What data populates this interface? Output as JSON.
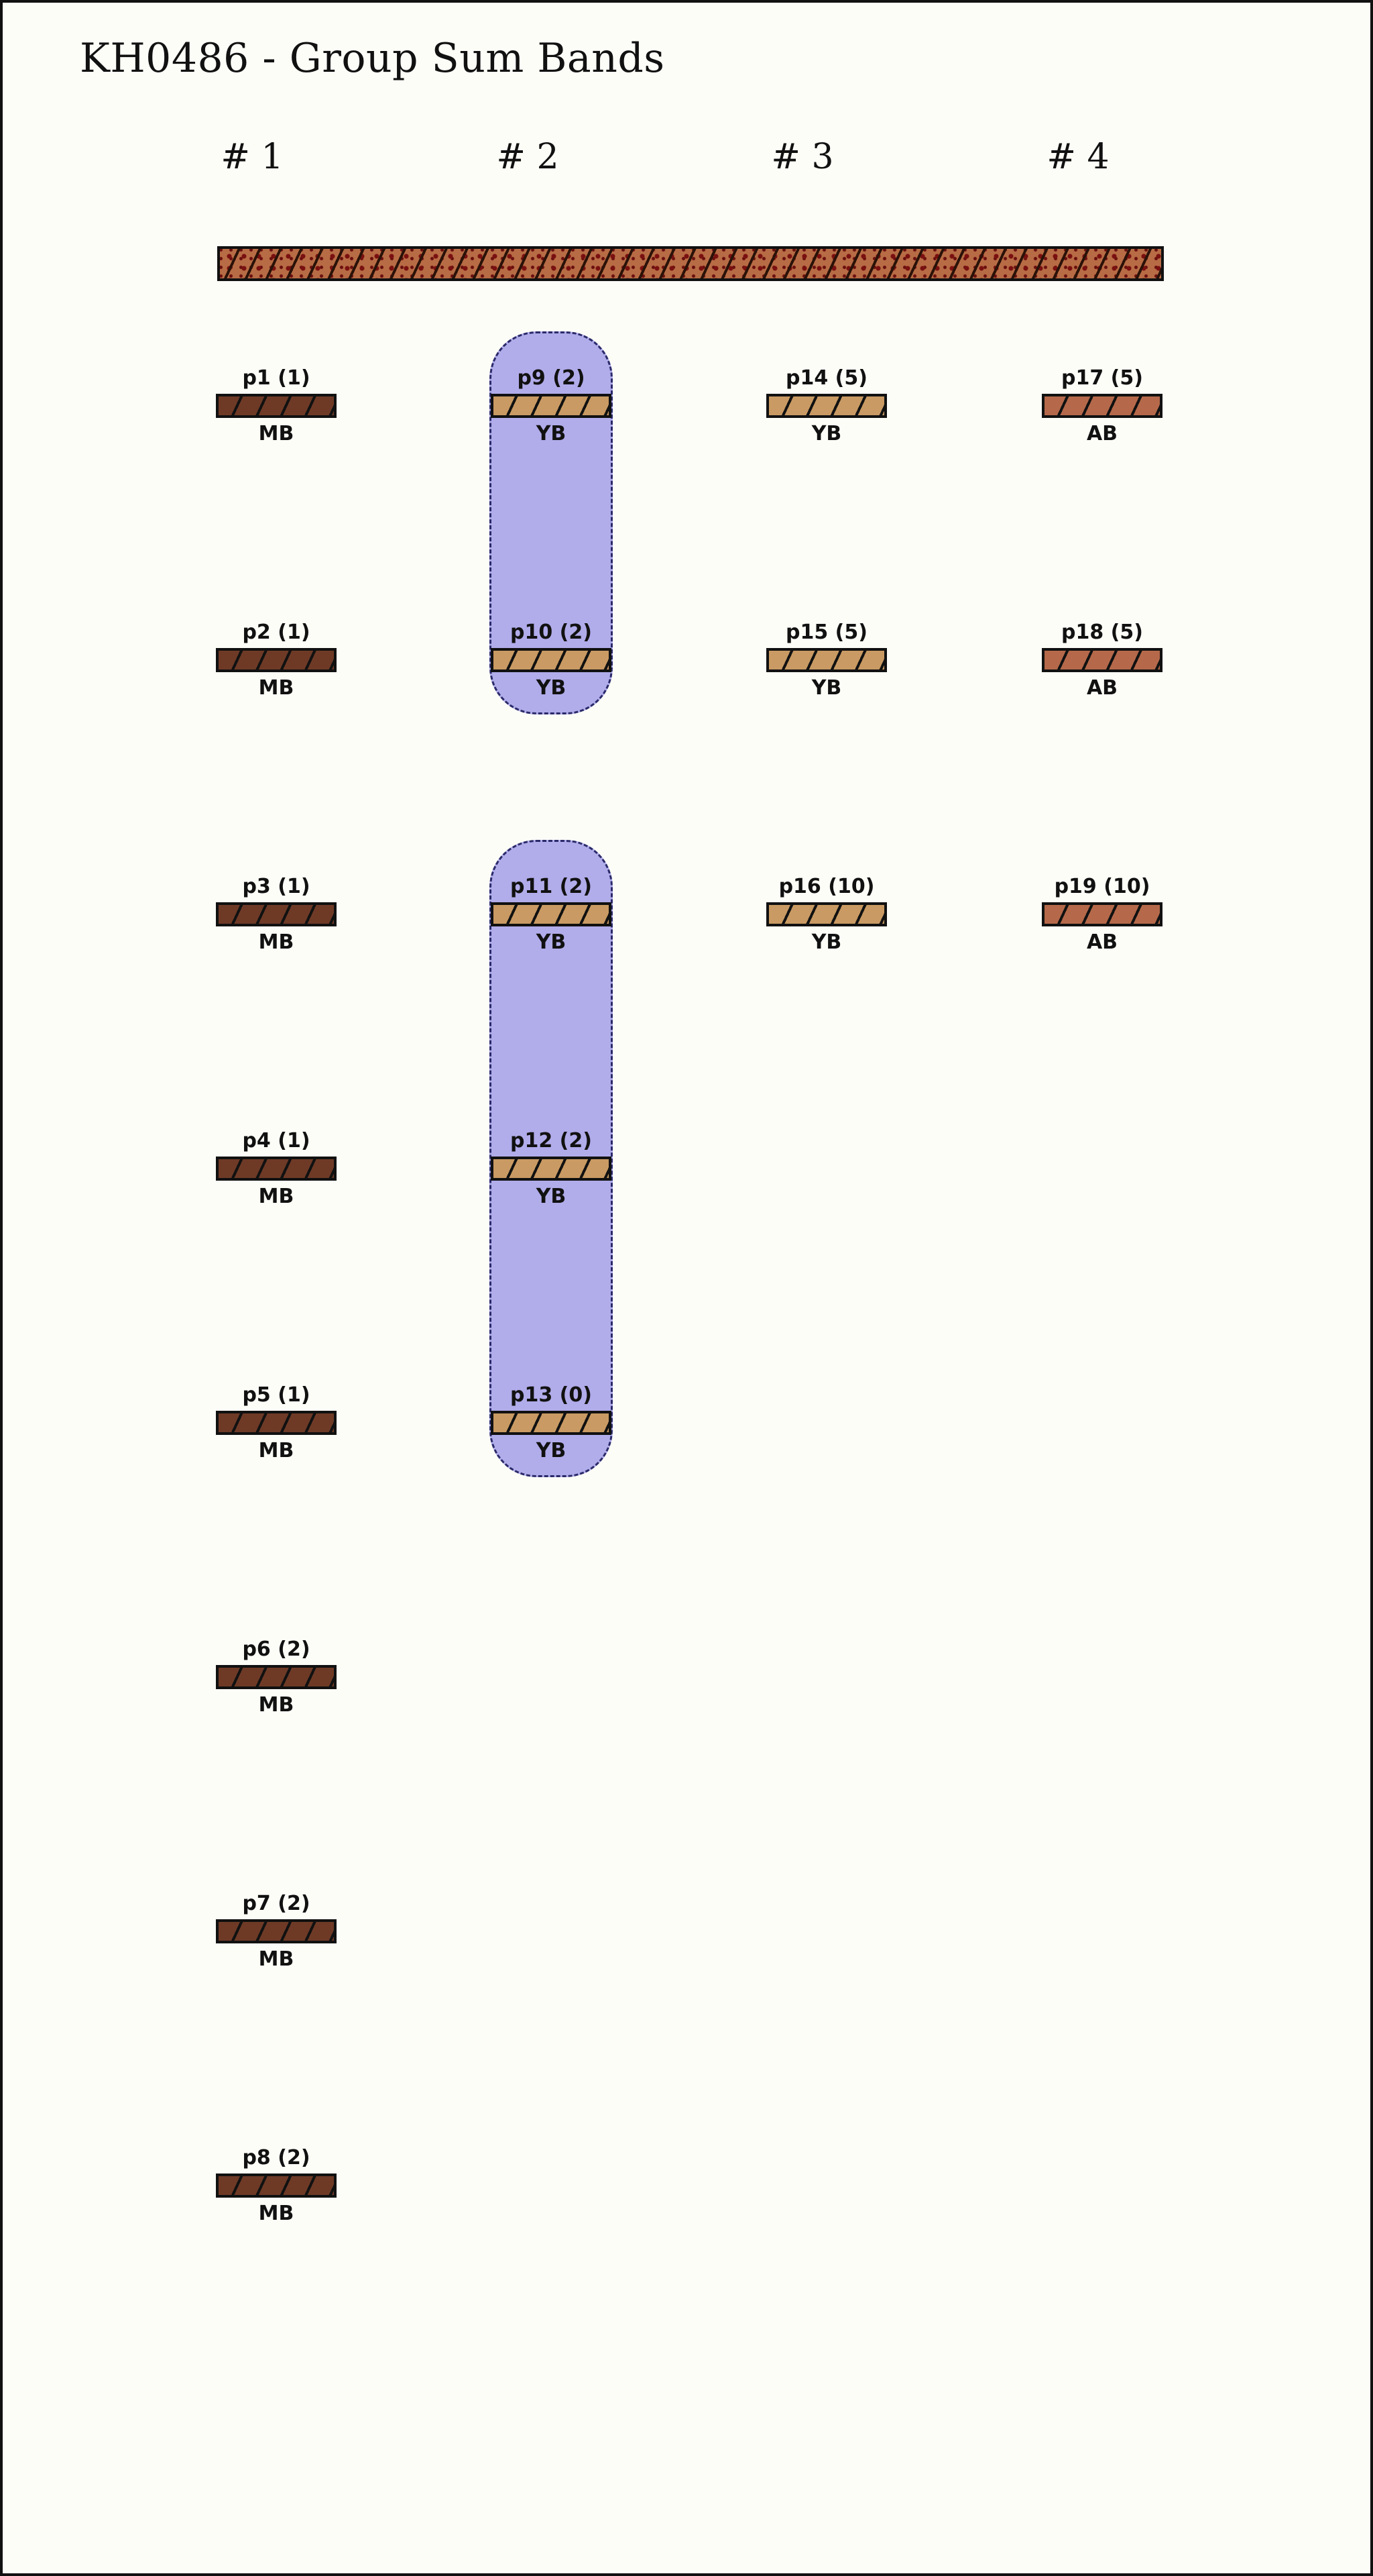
{
  "title": "KH0486 - Group Sum Bands",
  "colors": {
    "MB": "#6e3a26",
    "YB": "#c99a63",
    "AB": "#b5694a",
    "group_fill": "#b1acea",
    "main_band": "#b86c45"
  },
  "columns": [
    {
      "header": "# 1",
      "nodes": [
        {
          "label": "p1 (1)",
          "type": "MB"
        },
        {
          "label": "p2 (1)",
          "type": "MB"
        },
        {
          "label": "p3 (1)",
          "type": "MB"
        },
        {
          "label": "p4 (1)",
          "type": "MB"
        },
        {
          "label": "p5 (1)",
          "type": "MB"
        },
        {
          "label": "p6 (2)",
          "type": "MB"
        },
        {
          "label": "p7 (2)",
          "type": "MB"
        },
        {
          "label": "p8 (2)",
          "type": "MB"
        }
      ]
    },
    {
      "header": "# 2",
      "nodes": [
        {
          "label": "p9 (2)",
          "type": "YB"
        },
        {
          "label": "p10 (2)",
          "type": "YB"
        },
        {
          "label": "p11 (2)",
          "type": "YB"
        },
        {
          "label": "p12 (2)",
          "type": "YB"
        },
        {
          "label": "p13 (0)",
          "type": "YB"
        }
      ]
    },
    {
      "header": "# 3",
      "nodes": [
        {
          "label": "p14 (5)",
          "type": "YB"
        },
        {
          "label": "p15 (5)",
          "type": "YB"
        },
        {
          "label": "p16 (10)",
          "type": "YB"
        }
      ]
    },
    {
      "header": "# 4",
      "nodes": [
        {
          "label": "p17 (5)",
          "type": "AB"
        },
        {
          "label": "p18 (5)",
          "type": "AB"
        },
        {
          "label": "p19 (10)",
          "type": "AB"
        }
      ]
    }
  ],
  "groups": [
    {
      "column": 1,
      "from_row": 0,
      "to_row": 1
    },
    {
      "column": 1,
      "from_row": 2,
      "to_row": 4
    }
  ]
}
